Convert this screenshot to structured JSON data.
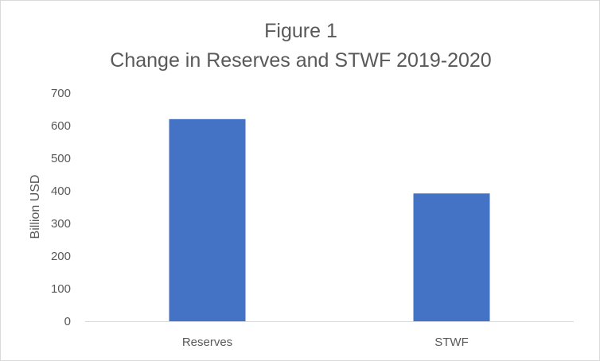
{
  "chart_data": {
    "type": "bar",
    "title": "Figure 1",
    "subtitle": "Change in Reserves and STWF 2019-2020",
    "xlabel": "",
    "ylabel": "Billion USD",
    "categories": [
      "Reserves",
      "STWF"
    ],
    "values": [
      620,
      392
    ],
    "ylim": [
      0,
      700
    ],
    "yticks": [
      "0",
      "100",
      "200",
      "300",
      "400",
      "500",
      "600",
      "700"
    ],
    "grid": false,
    "legend": "none",
    "bar_color": "#4472C4"
  }
}
